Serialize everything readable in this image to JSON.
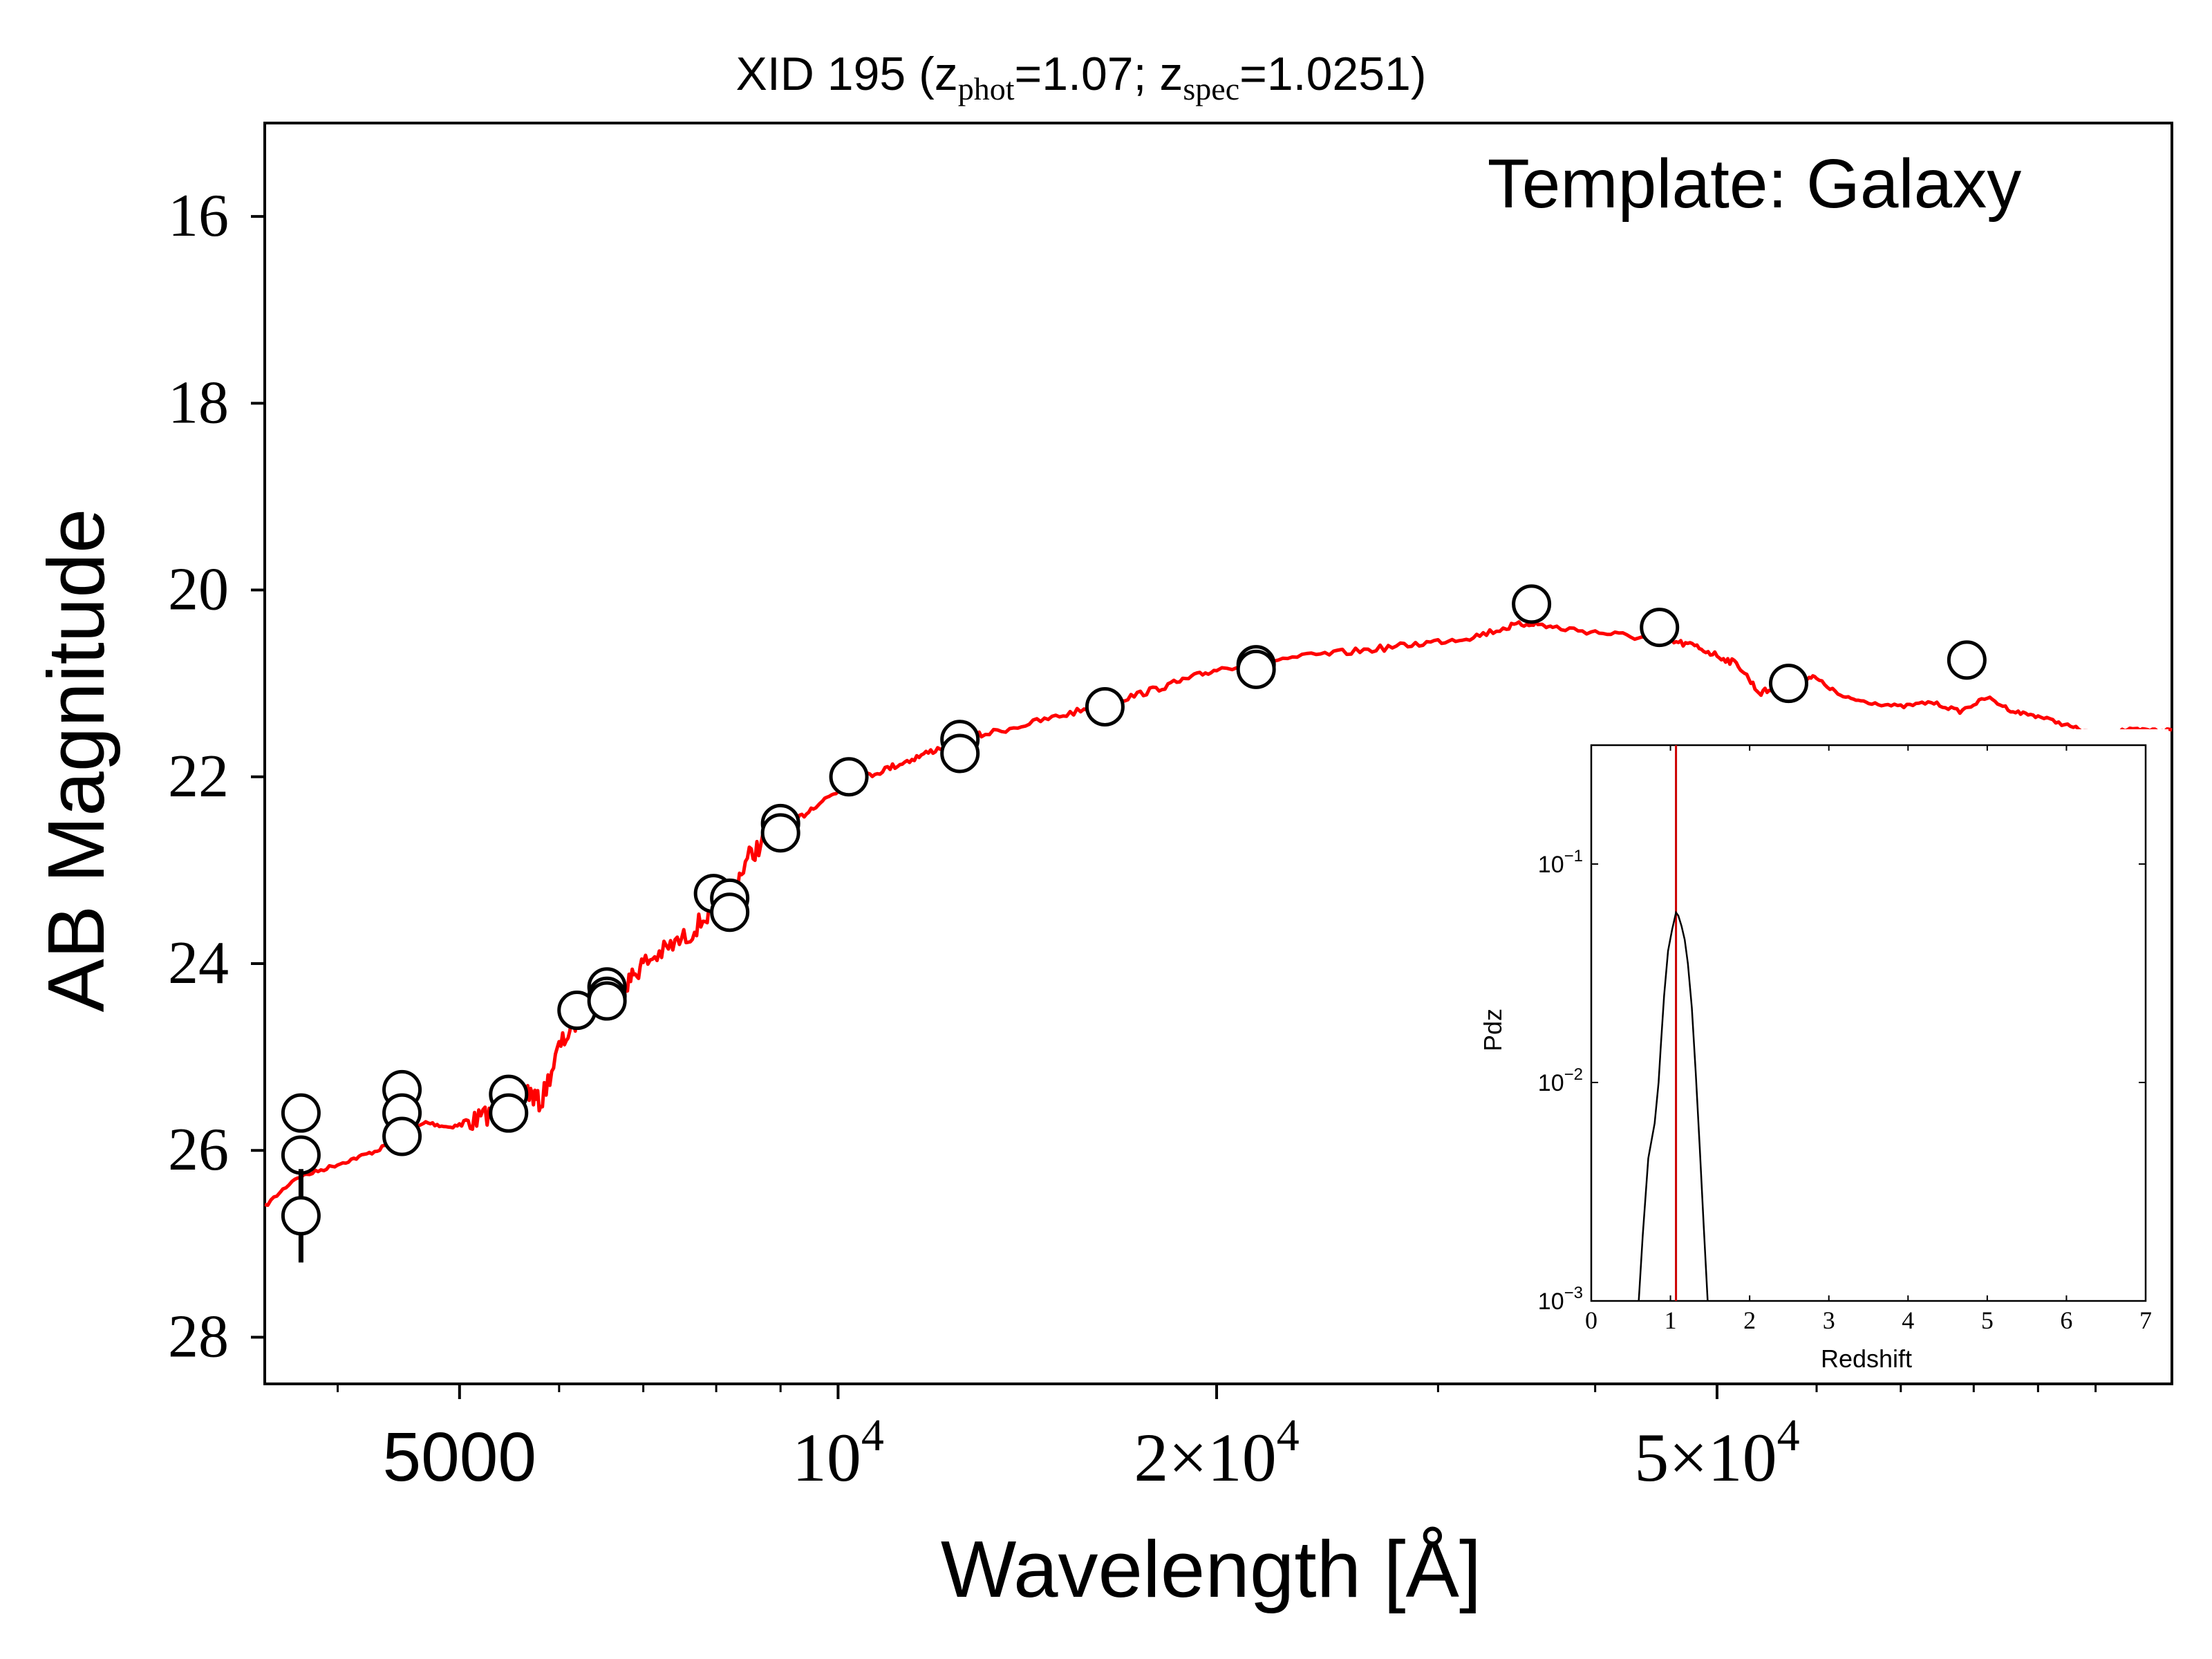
{
  "chart_data": [
    {
      "type": "scatter",
      "title": "XID 195 (z",
      "title_parts": {
        "prefix": "XID 195 (z",
        "sub_phot": "phot",
        "phot_value": "=1.07; z",
        "sub_spec": "spec",
        "spec_value": "=1.0251)"
      },
      "annotation": "Template: Galaxy",
      "xlabel": "Wavelength [Å]",
      "ylabel": "AB Magnitude",
      "x_scale": "log",
      "xlim": [
        3500,
        115000
      ],
      "ylim": [
        28.5,
        15.0
      ],
      "y_inverted": true,
      "x_ticks": [
        {
          "value": 5000,
          "label": "5000",
          "base": "",
          "exp": ""
        },
        {
          "value": 10000,
          "label": "",
          "base": "10",
          "exp": "4"
        },
        {
          "value": 20000,
          "label": "",
          "base": "2×10",
          "exp": "4"
        },
        {
          "value": 50000,
          "label": "",
          "base": "5×10",
          "exp": "4"
        }
      ],
      "x_minor_ticks": [
        4000,
        6000,
        7000,
        8000,
        9000,
        30000,
        40000,
        60000,
        70000,
        80000,
        90000,
        100000
      ],
      "y_ticks": [
        16,
        18,
        20,
        22,
        24,
        26,
        28
      ],
      "y_tick_labels": [
        "16",
        "18",
        "20",
        "22",
        "24",
        "26",
        "28"
      ],
      "points": [
        {
          "x": 3740,
          "y": 25.6
        },
        {
          "x": 3740,
          "y": 26.05
        },
        {
          "x": 3740,
          "y": 26.7,
          "yerr": 0.5
        },
        {
          "x": 4500,
          "y": 25.35
        },
        {
          "x": 4500,
          "y": 25.6
        },
        {
          "x": 4500,
          "y": 25.85
        },
        {
          "x": 5470,
          "y": 25.4
        },
        {
          "x": 5470,
          "y": 25.6
        },
        {
          "x": 6200,
          "y": 24.5
        },
        {
          "x": 6550,
          "y": 24.25
        },
        {
          "x": 6550,
          "y": 24.35
        },
        {
          "x": 6550,
          "y": 24.4
        },
        {
          "x": 7960,
          "y": 23.25
        },
        {
          "x": 8200,
          "y": 23.3
        },
        {
          "x": 8200,
          "y": 23.45
        },
        {
          "x": 9000,
          "y": 22.5
        },
        {
          "x": 9000,
          "y": 22.6
        },
        {
          "x": 10200,
          "y": 22.0
        },
        {
          "x": 12500,
          "y": 21.6
        },
        {
          "x": 12500,
          "y": 21.75
        },
        {
          "x": 16300,
          "y": 21.25
        },
        {
          "x": 21500,
          "y": 20.8
        },
        {
          "x": 21500,
          "y": 20.85
        },
        {
          "x": 35600,
          "y": 20.15
        },
        {
          "x": 45000,
          "y": 20.4
        },
        {
          "x": 57000,
          "y": 21.0
        },
        {
          "x": 79000,
          "y": 20.75
        }
      ],
      "template_curve": {
        "color": "#ff0000",
        "x": [
          3500,
          3700,
          3900,
          4100,
          4300,
          4500,
          4700,
          4900,
          5100,
          5300,
          5500,
          5650,
          5800,
          6000,
          6200,
          6400,
          6600,
          6800,
          7000,
          7300,
          7600,
          7900,
          8200,
          8500,
          8800,
          9200,
          9600,
          10000,
          10500,
          11000,
          11500,
          12000,
          12500,
          13000,
          14000,
          15000,
          16000,
          17000,
          18000,
          19000,
          20000,
          22000,
          24000,
          26000,
          28000,
          30000,
          32000,
          34000,
          35600,
          37000,
          40000,
          43000,
          46000,
          48000,
          50000,
          52000,
          54000,
          56000,
          58000,
          60000,
          63000,
          66000,
          70000,
          74000,
          78000,
          82000,
          86000,
          90000,
          95000,
          100000,
          105000,
          110000,
          115000
        ],
        "y": [
          26.6,
          26.3,
          26.2,
          26.1,
          26.0,
          25.85,
          25.7,
          25.75,
          25.7,
          25.6,
          25.45,
          25.35,
          25.5,
          24.9,
          24.6,
          24.45,
          24.35,
          24.2,
          24.0,
          23.85,
          23.7,
          23.45,
          23.25,
          22.85,
          22.65,
          22.5,
          22.3,
          22.15,
          22.0,
          21.9,
          21.8,
          21.7,
          21.6,
          21.55,
          21.45,
          21.35,
          21.25,
          21.15,
          21.05,
          20.95,
          20.85,
          20.75,
          20.7,
          20.65,
          20.6,
          20.55,
          20.5,
          20.4,
          20.35,
          20.4,
          20.45,
          20.5,
          20.55,
          20.6,
          20.7,
          20.8,
          21.1,
          21.05,
          20.9,
          20.95,
          21.15,
          21.2,
          21.25,
          21.2,
          21.3,
          21.15,
          21.3,
          21.35,
          21.45,
          21.55,
          21.5,
          21.5,
          21.5
        ]
      }
    },
    {
      "type": "line",
      "title": "",
      "xlabel": "Redshift",
      "ylabel": "Pdz",
      "y_scale": "log",
      "xlim": [
        0,
        7
      ],
      "ylim": [
        0.001,
        0.35
      ],
      "x_ticks": [
        0,
        1,
        2,
        3,
        4,
        5,
        6,
        7
      ],
      "x_tick_labels": [
        "0",
        "1",
        "2",
        "3",
        "4",
        "5",
        "6",
        "7"
      ],
      "y_ticks": [
        0.1,
        0.01,
        0.001
      ],
      "y_tick_labels": [
        {
          "base": "10",
          "exp": "−1"
        },
        {
          "base": "10",
          "exp": "−2"
        },
        {
          "base": "10",
          "exp": "−3"
        }
      ],
      "marker_line": {
        "x": 1.07,
        "color": "#cc0000"
      },
      "series": [
        {
          "x": [
            0.6,
            0.65,
            0.72,
            0.8,
            0.85,
            0.88,
            0.92,
            0.97,
            1.02,
            1.07,
            1.1,
            1.14,
            1.18,
            1.22,
            1.27,
            1.32,
            1.37,
            1.42,
            1.47
          ],
          "y": [
            0.001,
            0.002,
            0.0045,
            0.0065,
            0.01,
            0.015,
            0.025,
            0.04,
            0.05,
            0.06,
            0.058,
            0.052,
            0.045,
            0.035,
            0.022,
            0.011,
            0.005,
            0.0022,
            0.001
          ]
        }
      ]
    }
  ]
}
